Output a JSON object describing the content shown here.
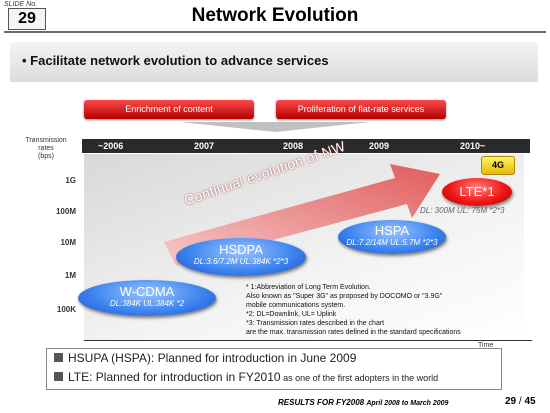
{
  "header": {
    "slide_label": "SLIDE No.",
    "slide_number": "29",
    "title": "Network Evolution"
  },
  "bullet": "• Facilitate network evolution to advance services",
  "drivers": [
    "Enrichment of content",
    "Proliferation of flat-rate services"
  ],
  "chart": {
    "y_axis_label_line1": "Transmission",
    "y_axis_label_line2": "rates",
    "y_axis_label_line3": "(bps)",
    "years": [
      "~2006",
      "2007",
      "2008",
      "2009",
      "2010~"
    ],
    "rate_ticks": [
      "1G",
      "100M",
      "10M",
      "1M",
      "100K"
    ],
    "x_axis_label": "Time",
    "arrow_text": "Continual evolution of NW",
    "badge_4g": "4G"
  },
  "technologies": {
    "wcdma": {
      "name": "W-CDMA",
      "rates": "DL:384K  UL:384K *2"
    },
    "hsdpa": {
      "name": "HSDPA",
      "rates": "DL:3.6/7.2M  UL:384K *2*3"
    },
    "hspa": {
      "name": "HSPA",
      "rates": "DL:7.2/14M  UL:5.7M *2*3"
    },
    "lte": {
      "name": "LTE*1",
      "rates": "DL: 300M  UL: 75M *2*3"
    }
  },
  "notes": [
    "* 1:Abbreviation of Long Term Evolution.",
    "   Also known as \"Super 3G\" as proposed by DOCOMO or \"3.9G\"",
    "   mobile communications system.",
    "*2: DL=Downlink, UL= Uplink",
    "*3: Transmission rates described in the chart",
    "     are the max. transmission rates defined in the standard specifications"
  ],
  "plans": {
    "hsupa": "HSUPA (HSPA): Planned for introduction in June 2009",
    "lte_main": "LTE: Planned for introduction in FY2010",
    "lte_small": " as one of the first adopters in the world"
  },
  "footer": {
    "text": "RESULTS FOR FY2008",
    "sub": "April 2008 to March 2009",
    "page": "29",
    "separator": " / ",
    "total": "45"
  },
  "colors": {
    "blue": "#3f86f0",
    "red": "#e01010",
    "yellow": "#f5d000"
  }
}
